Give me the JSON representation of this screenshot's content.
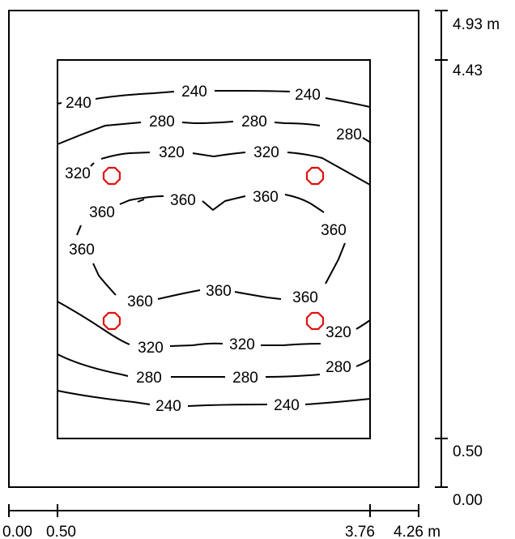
{
  "contour_labels": {
    "c240": "240",
    "c280": "280",
    "c320": "320",
    "c360": "360"
  },
  "dimensions": {
    "x": [
      "0.00",
      "0.50",
      "3.76",
      "4.26 m"
    ],
    "y": [
      "4.93 m",
      "4.43",
      "0.50",
      "0.00"
    ]
  },
  "colors": {
    "luminaire": "#e01010",
    "line": "#000000"
  }
}
